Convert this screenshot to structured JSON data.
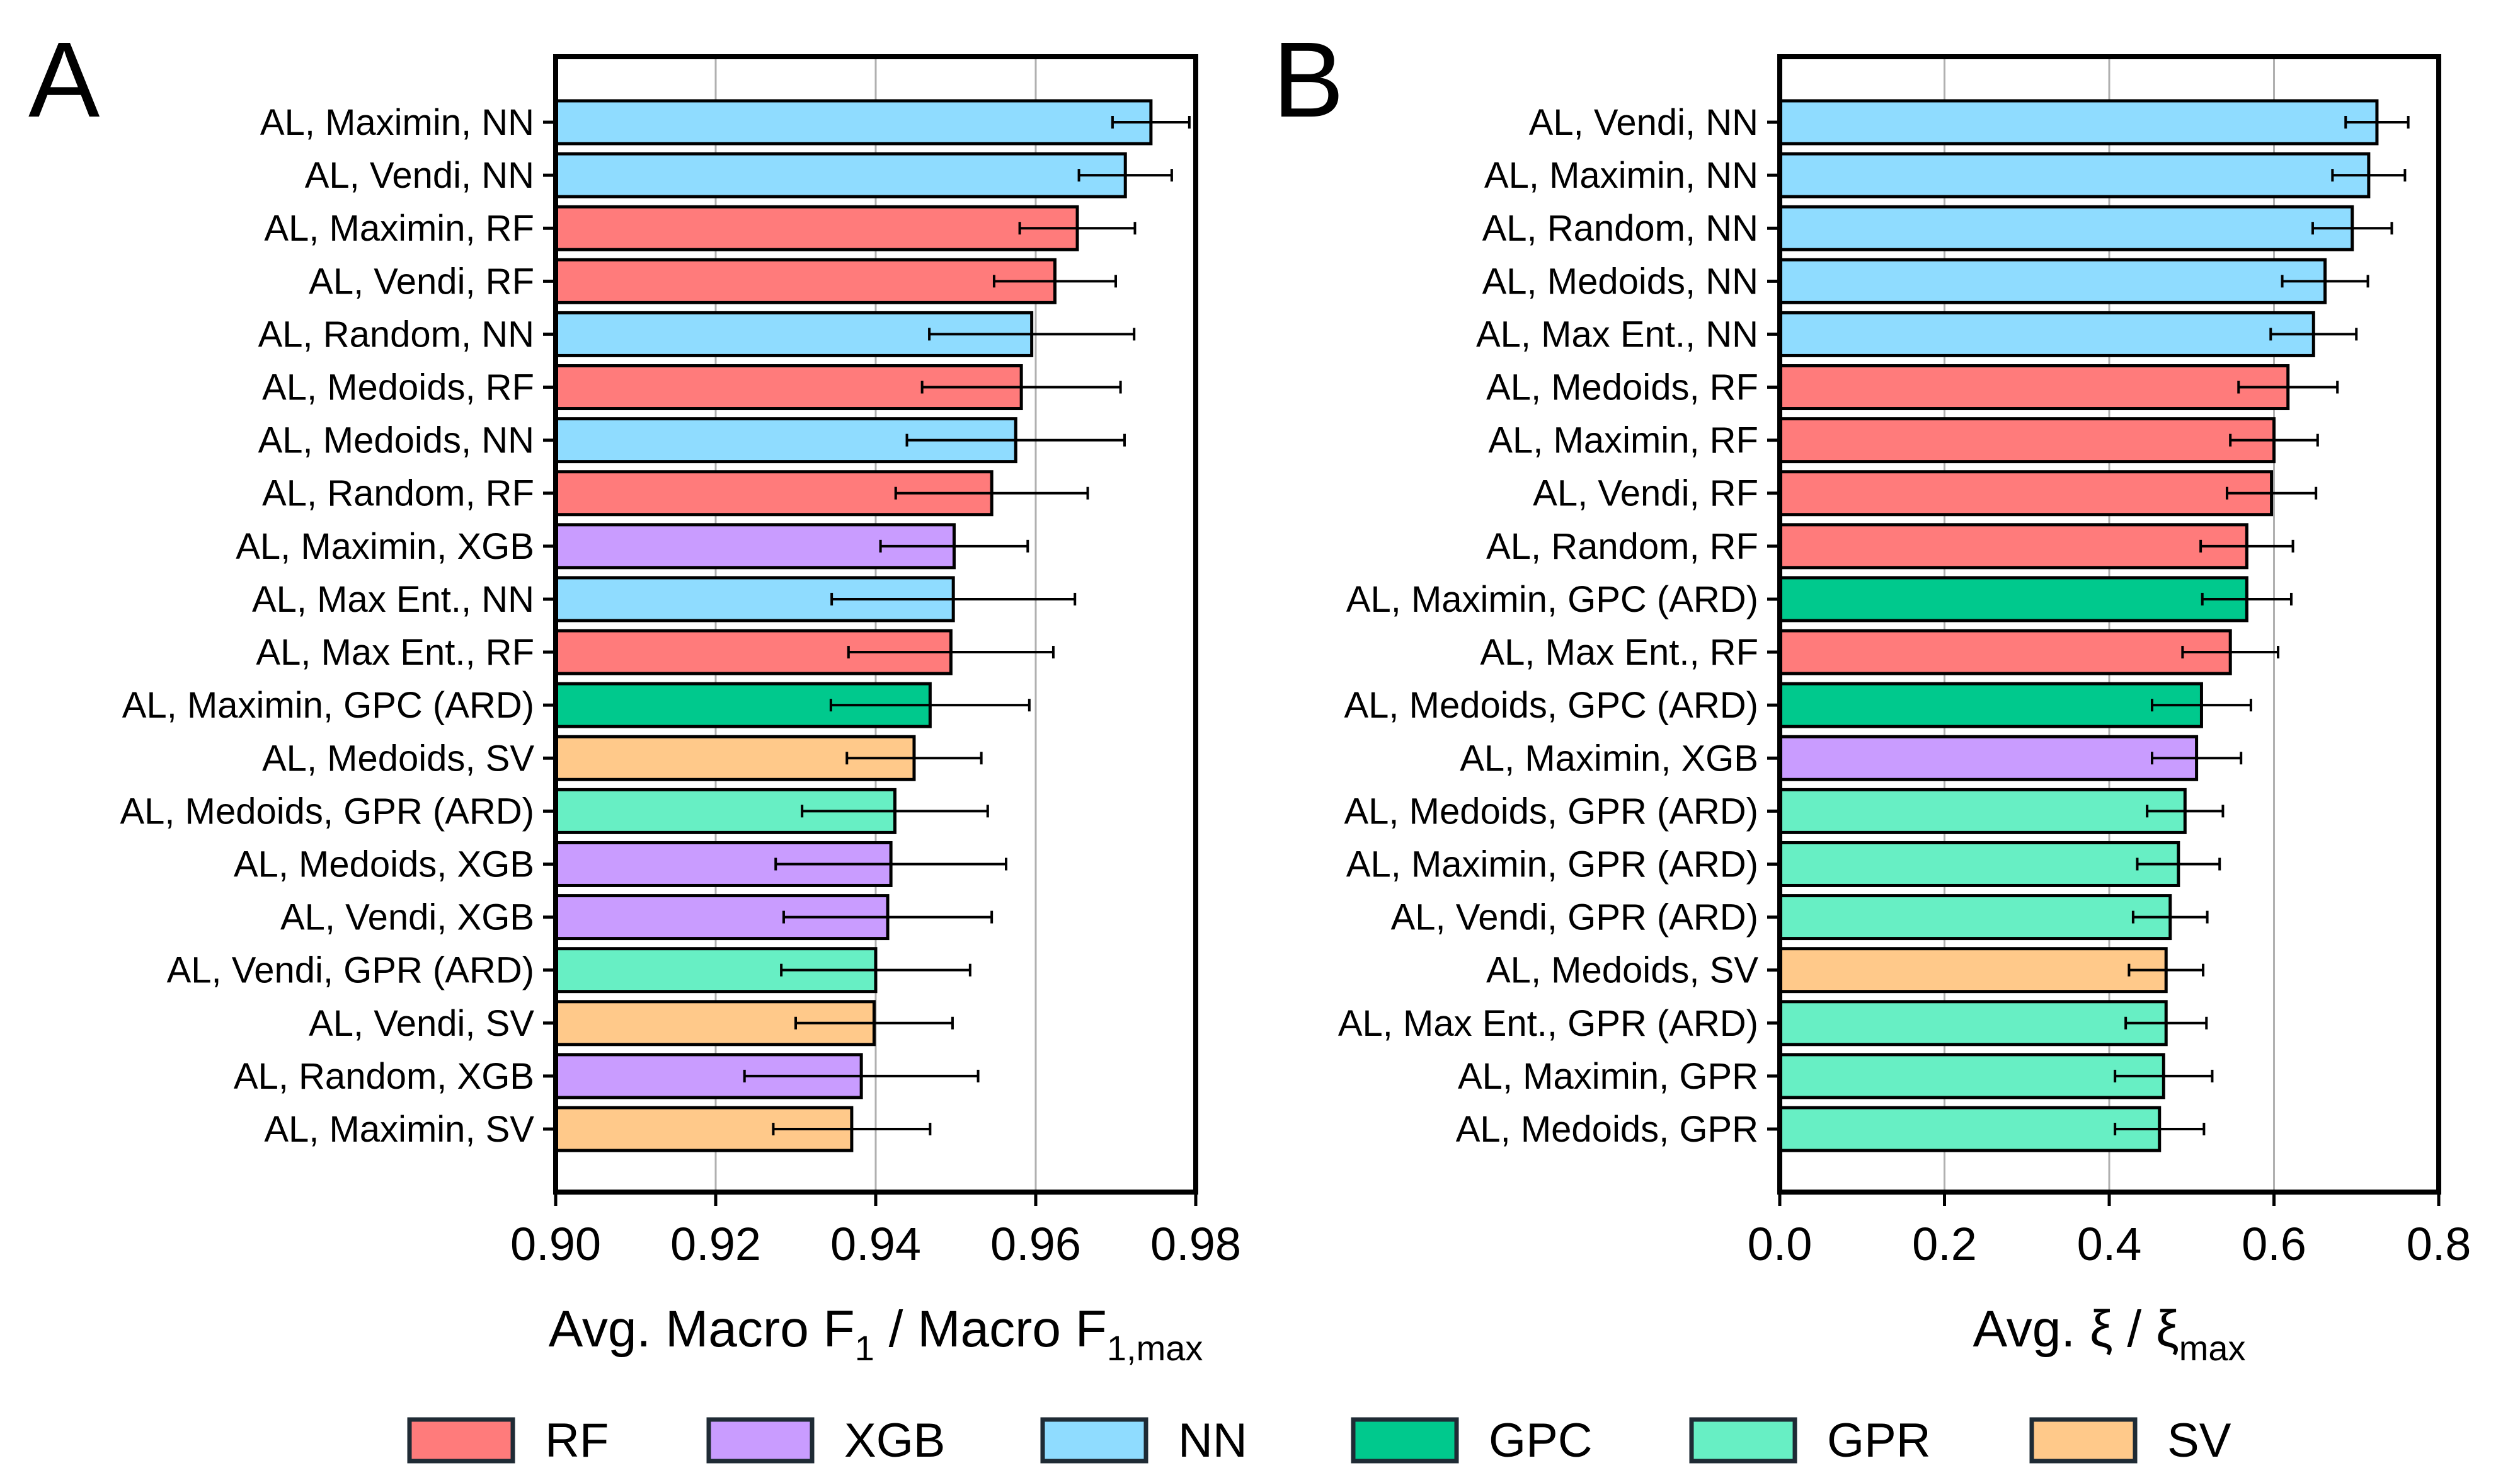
{
  "colors": {
    "RF": "#ff7b7b",
    "XGB": "#c99cff",
    "NN": "#8fdcff",
    "GPC": "#00c98d",
    "GPR": "#67efc4",
    "SV": "#ffc98a"
  },
  "legend": [
    {
      "key": "RF",
      "label": "RF"
    },
    {
      "key": "XGB",
      "label": "XGB"
    },
    {
      "key": "NN",
      "label": "NN"
    },
    {
      "key": "GPC",
      "label": "GPC"
    },
    {
      "key": "GPR",
      "label": "GPR"
    },
    {
      "key": "SV",
      "label": "SV"
    }
  ],
  "chart_data": [
    {
      "panel": "A",
      "type": "bar",
      "orientation": "horizontal",
      "xlabel": "Avg. Macro F",
      "xlabel_sub1": "1",
      "xlabel_mid": " / Macro F",
      "xlabel_sub2": "1,max",
      "xlim": [
        0.9,
        0.98
      ],
      "xticks": [
        "0.90",
        "0.92",
        "0.94",
        "0.96",
        "0.98"
      ],
      "grid": "x",
      "categories": [
        "AL, Maximin, NN",
        "AL, Vendi, NN",
        "AL, Maximin, RF",
        "AL, Vendi, RF",
        "AL, Random, NN",
        "AL, Medoids, RF",
        "AL, Medoids, NN",
        "AL, Random, RF",
        "AL, Maximin, XGB",
        "AL, Max Ent., NN",
        "AL, Max Ent., RF",
        "AL, Maximin, GPC (ARD)",
        "AL, Medoids, SV",
        "AL, Medoids, GPR (ARD)",
        "AL, Medoids, XGB",
        "AL, Vendi, XGB",
        "AL, Vendi, GPR (ARD)",
        "AL, Vendi, SV",
        "AL, Random, XGB",
        "AL, Maximin, SV"
      ],
      "models": [
        "NN",
        "NN",
        "RF",
        "RF",
        "NN",
        "RF",
        "NN",
        "RF",
        "XGB",
        "NN",
        "RF",
        "GPC",
        "SV",
        "GPR",
        "XGB",
        "XGB",
        "GPR",
        "SV",
        "XGB",
        "SV"
      ],
      "values": [
        0.9744,
        0.9712,
        0.9652,
        0.9624,
        0.9595,
        0.9582,
        0.9575,
        0.9545,
        0.9498,
        0.9497,
        0.9494,
        0.9468,
        0.9448,
        0.9424,
        0.9419,
        0.9415,
        0.94,
        0.9398,
        0.9382,
        0.937
      ],
      "errors": [
        0.0048,
        0.0058,
        0.0072,
        0.0076,
        0.0128,
        0.0124,
        0.0136,
        0.012,
        0.0092,
        0.0152,
        0.0128,
        0.0124,
        0.0084,
        0.0116,
        0.0144,
        0.013,
        0.0118,
        0.0098,
        0.0146,
        0.0098
      ]
    },
    {
      "panel": "B",
      "type": "bar",
      "orientation": "horizontal",
      "xlabel": "Avg. ξ / ξ",
      "xlabel_sub": "max",
      "xlim": [
        0.0,
        0.8
      ],
      "xticks": [
        "0.0",
        "0.2",
        "0.4",
        "0.6",
        "0.8"
      ],
      "grid": "x",
      "categories": [
        "AL, Vendi, NN",
        "AL, Maximin, NN",
        "AL, Random, NN",
        "AL, Medoids, NN",
        "AL, Max Ent., NN",
        "AL, Medoids, RF",
        "AL, Maximin, RF",
        "AL, Vendi, RF",
        "AL, Random, RF",
        "AL, Maximin, GPC (ARD)",
        "AL, Max Ent., RF",
        "AL, Medoids, GPC (ARD)",
        "AL, Maximin, XGB",
        "AL, Medoids, GPR (ARD)",
        "AL, Maximin, GPR (ARD)",
        "AL, Vendi, GPR (ARD)",
        "AL, Medoids, SV",
        "AL, Max Ent., GPR (ARD)",
        "AL, Maximin, GPR",
        "AL, Medoids, GPR"
      ],
      "models": [
        "NN",
        "NN",
        "NN",
        "NN",
        "NN",
        "RF",
        "RF",
        "RF",
        "RF",
        "GPC",
        "RF",
        "GPC",
        "XGB",
        "GPR",
        "GPR",
        "GPR",
        "SV",
        "GPR",
        "GPR",
        "GPR"
      ],
      "values": [
        0.725,
        0.715,
        0.695,
        0.662,
        0.648,
        0.617,
        0.6,
        0.597,
        0.567,
        0.567,
        0.547,
        0.512,
        0.506,
        0.492,
        0.484,
        0.474,
        0.469,
        0.469,
        0.466,
        0.461
      ],
      "errors": [
        0.038,
        0.044,
        0.048,
        0.052,
        0.052,
        0.06,
        0.053,
        0.054,
        0.056,
        0.054,
        0.058,
        0.06,
        0.054,
        0.046,
        0.05,
        0.045,
        0.045,
        0.049,
        0.059,
        0.054
      ]
    }
  ]
}
